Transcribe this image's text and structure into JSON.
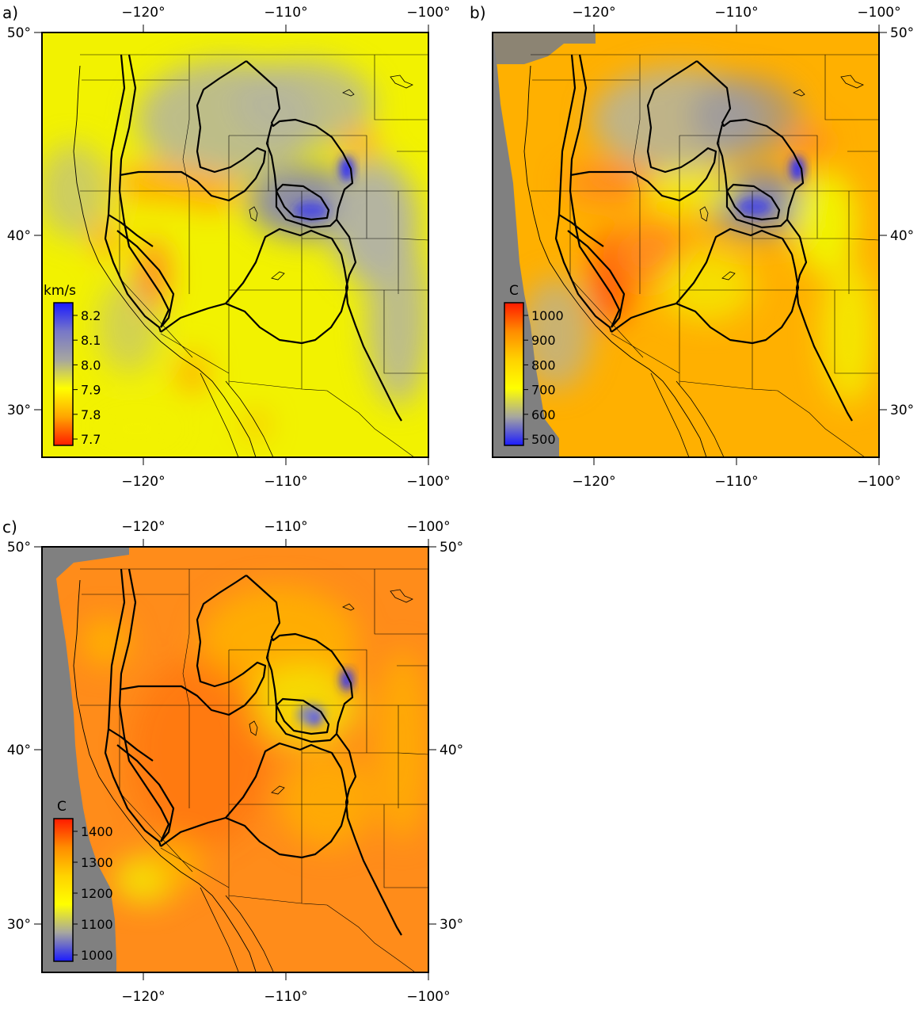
{
  "figure": {
    "panels": [
      {
        "label": "a)",
        "colorbar": {
          "unit": "km/s",
          "ticks": [
            "8.2",
            "8.1",
            "8.0",
            "7.9",
            "7.8",
            "7.7"
          ],
          "colors": [
            "#1a1aff",
            "#7777c8",
            "#a6a6a0",
            "#ffff00",
            "#ffa500",
            "#ff1a00"
          ]
        },
        "top_ticks": [
          "−120°",
          "−110°",
          "−100°"
        ],
        "bottom_ticks": [
          "−120°",
          "−110°",
          "−100°"
        ],
        "left_ticks": [
          "50°",
          "40°",
          "30°"
        ],
        "right_ticks": []
      },
      {
        "label": "b)",
        "colorbar": {
          "unit": "C",
          "ticks": [
            "1000",
            "900",
            "800",
            "700",
            "600",
            "500"
          ],
          "colors": [
            "#ff1a00",
            "#ff8c00",
            "#ffd200",
            "#ffff00",
            "#a6a6a0",
            "#1a1aff"
          ]
        },
        "top_ticks": [
          "−120°",
          "−110°",
          "−100°"
        ],
        "bottom_ticks": [
          "−120°",
          "−110°",
          "−100°"
        ],
        "left_ticks": [],
        "right_ticks": [
          "50°",
          "40°",
          "30°"
        ]
      },
      {
        "label": "c)",
        "colorbar": {
          "unit": "C",
          "ticks": [
            "1400",
            "1300",
            "1200",
            "1100",
            "1000"
          ],
          "colors": [
            "#ff1a00",
            "#ff8c00",
            "#ffd200",
            "#ffff00",
            "#a6a6a0",
            "#1a1aff"
          ]
        },
        "top_ticks": [
          "−120°",
          "−110°",
          "−100°"
        ],
        "bottom_ticks": [
          "−120°",
          "−110°",
          "−100°"
        ],
        "left_ticks": [
          "50°",
          "40°",
          "30°"
        ],
        "right_ticks": [
          "50°",
          "40°",
          "30°"
        ]
      }
    ],
    "map_colors": {
      "yellow": "#f2f200",
      "orange": "#ffb000",
      "deep_orange": "#ff8c1a",
      "red_orange": "#ff5a00",
      "gray": "#b4b4a0",
      "slate": "#8c8ca6",
      "blue": "#2a2aff",
      "mask_gray": "#808080"
    }
  }
}
